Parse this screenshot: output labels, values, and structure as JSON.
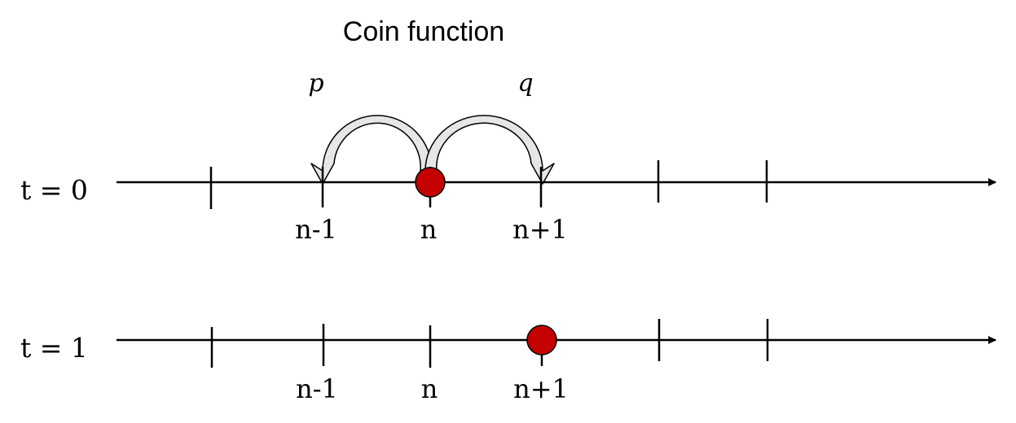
{
  "title": "Coin function",
  "coin": {
    "left_prob": "p",
    "right_prob": "q"
  },
  "rows": [
    {
      "label": "t = 0",
      "tick_labels": [
        "n-1",
        "n",
        "n+1"
      ],
      "walker_position": "n"
    },
    {
      "label": "t = 1",
      "tick_labels": [
        "n-1",
        "n",
        "n+1"
      ],
      "walker_position": "n+1"
    }
  ],
  "colors": {
    "walker": "#c40000",
    "arrow_fill": "#e6e6e6",
    "line": "#000000"
  }
}
